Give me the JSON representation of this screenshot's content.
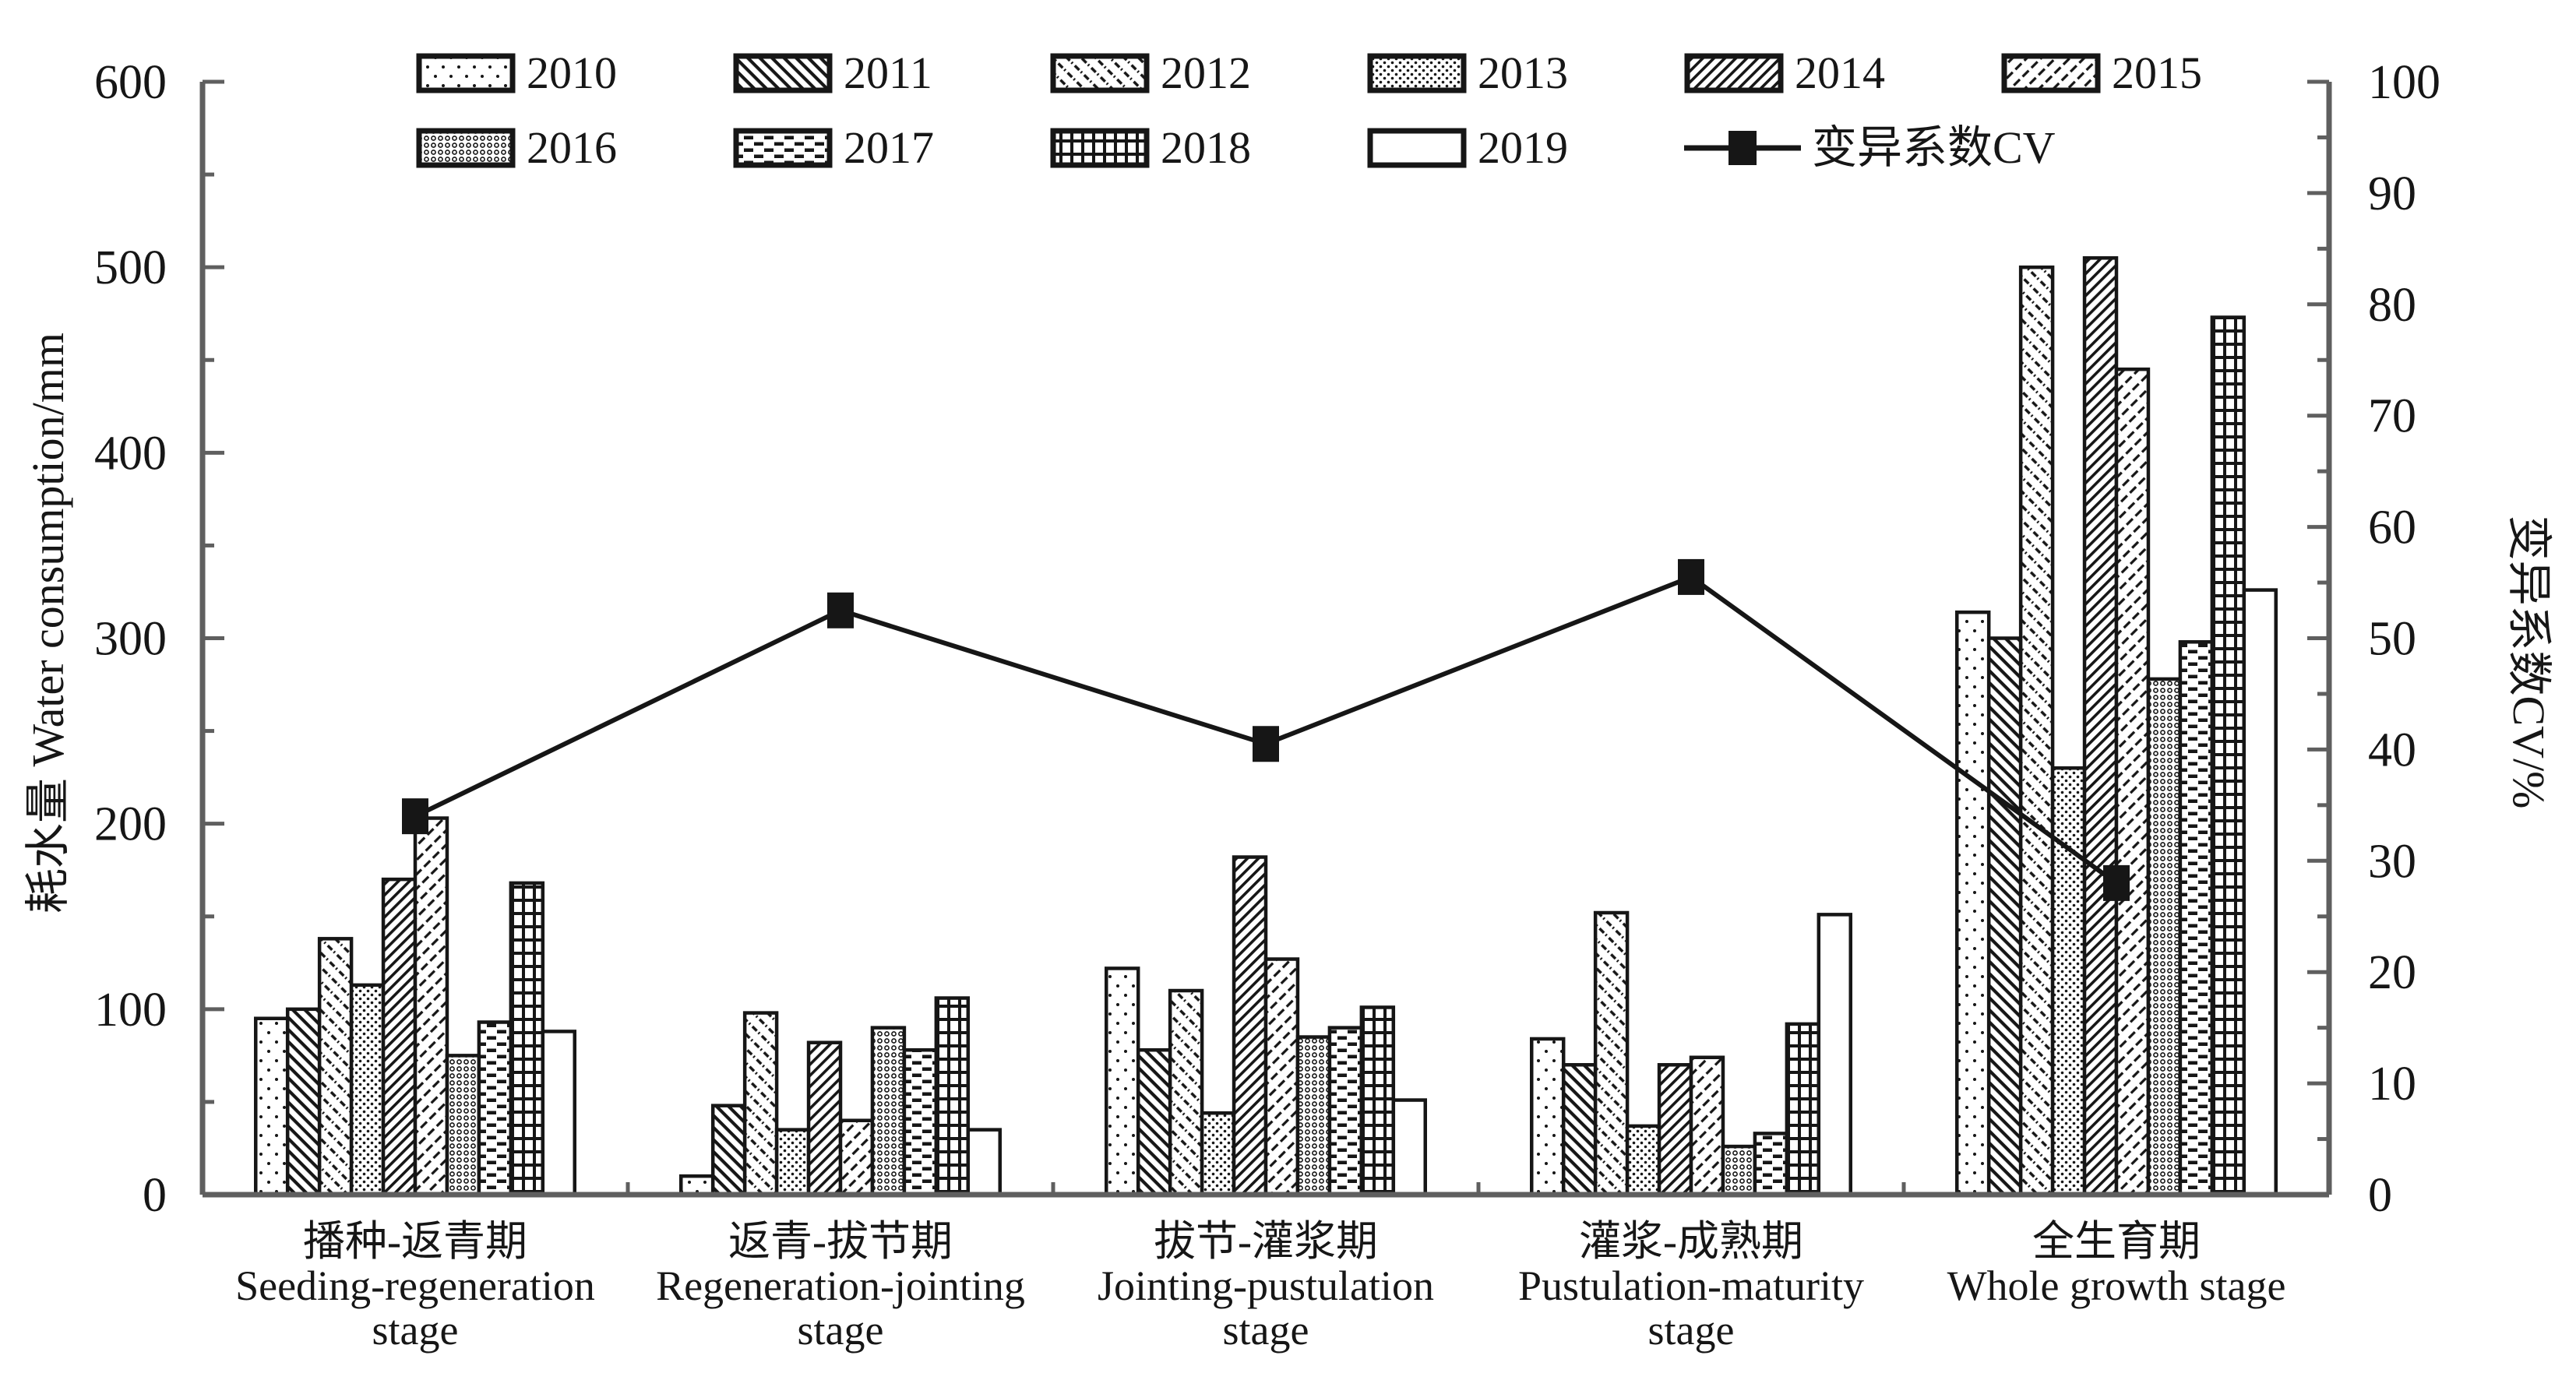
{
  "style": {
    "background": "#ffffff",
    "ink": "#161616",
    "axis_line": "#5f5f5f"
  },
  "legend": {
    "rows": [
      [
        "2010",
        "2011",
        "2012",
        "2013",
        "2014",
        "2015"
      ],
      [
        "2016",
        "2017",
        "2018",
        "2019"
      ]
    ],
    "cv_label": "变异系数CV"
  },
  "chart_data": {
    "type": "bar+line",
    "title": "",
    "grid": false,
    "legend_position": "top",
    "categories": [
      [
        "播种-返青期",
        "Seeding-regeneration",
        "stage"
      ],
      [
        "返青-拔节期",
        "Regeneration-jointing",
        "stage"
      ],
      [
        "拔节-灌浆期",
        "Jointing-pustulation",
        "stage"
      ],
      [
        "灌浆-成熟期",
        "Pustulation-maturity",
        "stage"
      ],
      [
        "全生育期",
        "Whole growth stage"
      ]
    ],
    "series": [
      {
        "name": "2010",
        "values": [
          95,
          10,
          122,
          84,
          314
        ]
      },
      {
        "name": "2011",
        "values": [
          100,
          48,
          78,
          70,
          300
        ]
      },
      {
        "name": "2012",
        "values": [
          138,
          98,
          110,
          152,
          500
        ]
      },
      {
        "name": "2013",
        "values": [
          113,
          35,
          44,
          37,
          230
        ]
      },
      {
        "name": "2014",
        "values": [
          170,
          82,
          182,
          70,
          505
        ]
      },
      {
        "name": "2015",
        "values": [
          203,
          40,
          127,
          74,
          445
        ]
      },
      {
        "name": "2016",
        "values": [
          75,
          90,
          85,
          26,
          278
        ]
      },
      {
        "name": "2017",
        "values": [
          93,
          78,
          90,
          33,
          298
        ]
      },
      {
        "name": "2018",
        "values": [
          168,
          106,
          101,
          92,
          473
        ]
      },
      {
        "name": "2019",
        "values": [
          88,
          35,
          51,
          151,
          326
        ]
      }
    ],
    "line_series": {
      "name": "变异系数CV",
      "axis": "right",
      "values": [
        34,
        52.5,
        40.5,
        55.5,
        28
      ]
    },
    "left_axis": {
      "title": "耗水量 Water consumption/mm",
      "min": 0,
      "max": 600,
      "major_step": 100,
      "minor_step": 50
    },
    "right_axis": {
      "title": "变异系数CV/%",
      "min": 0,
      "max": 100,
      "major_step": 10,
      "minor_step": 5
    }
  }
}
